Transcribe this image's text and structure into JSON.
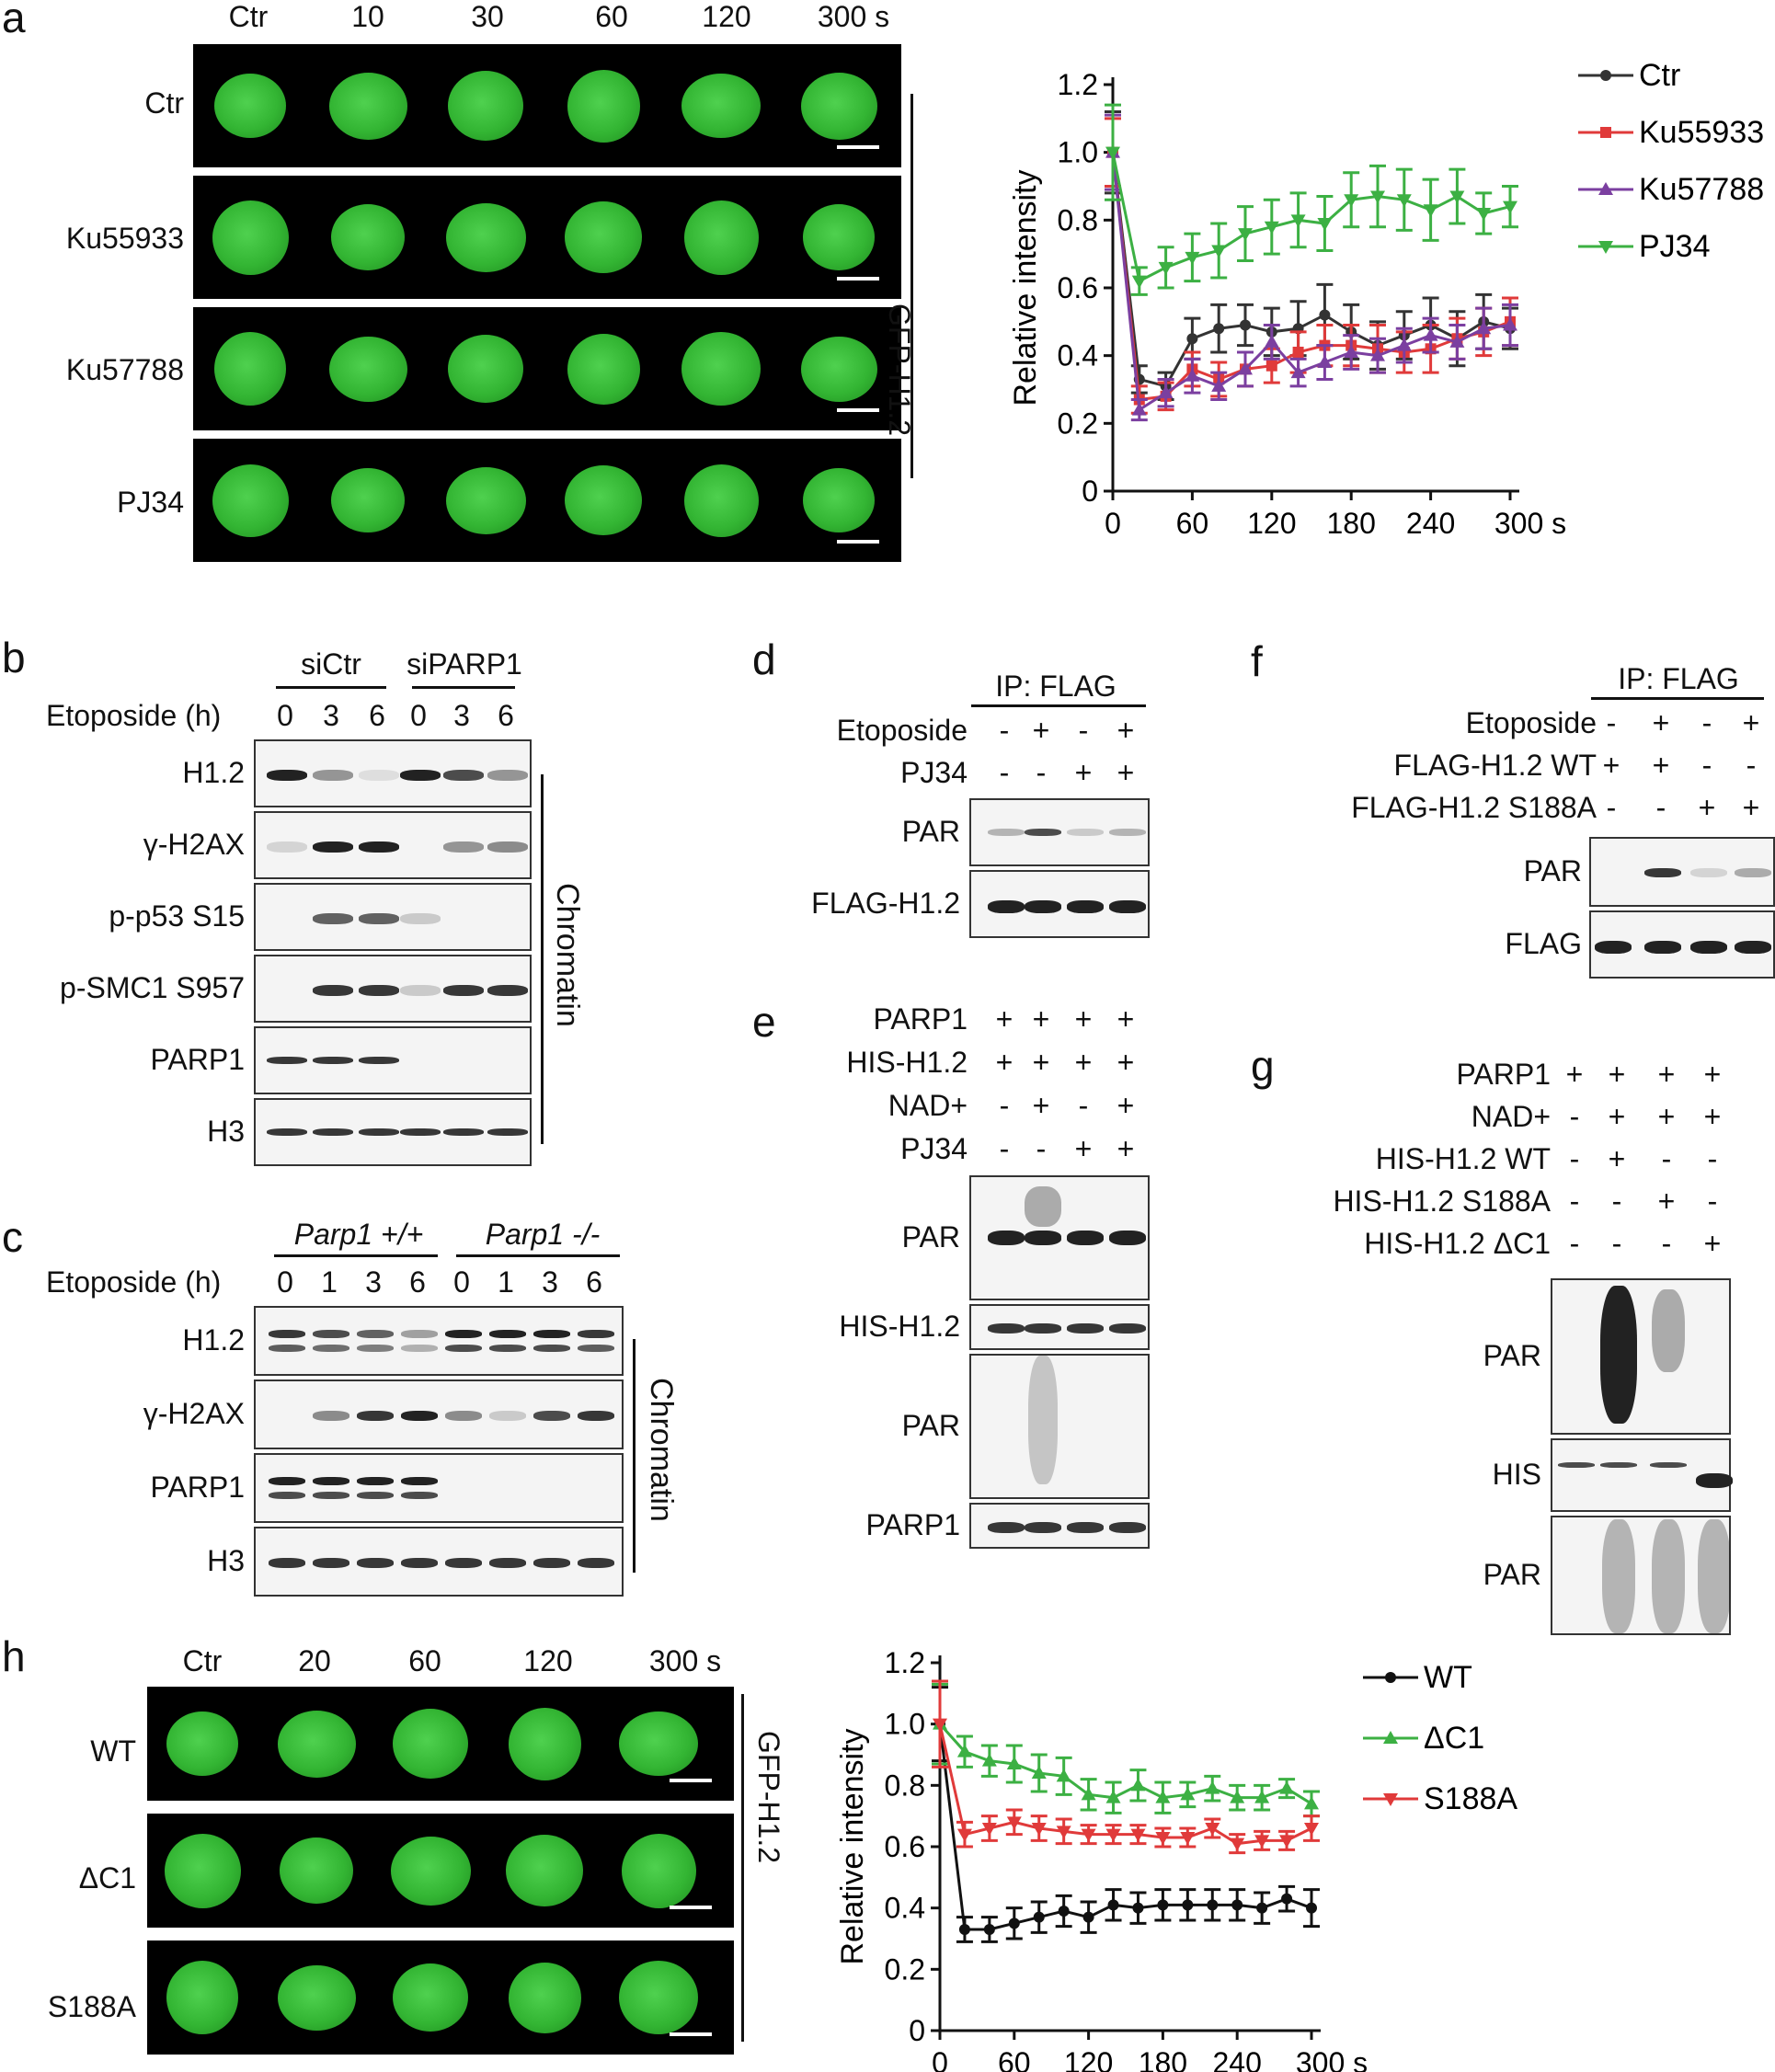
{
  "panels": {
    "a": {
      "label": "a",
      "time_headers": [
        "Ctr",
        "10",
        "30",
        "60",
        "120",
        "300 s"
      ],
      "row_labels": [
        "Ctr",
        "Ku55933",
        "Ku57788",
        "PJ34"
      ],
      "side_label": "GFP-H1.2"
    },
    "b": {
      "label": "b",
      "group_labels": [
        "siCtr",
        "siPARP1"
      ],
      "etoposide_label": "Etoposide (h)",
      "times": [
        "0",
        "3",
        "6",
        "0",
        "3",
        "6"
      ],
      "row_labels": [
        "H1.2",
        "γ-H2AX",
        "p-p53 S15",
        "p-SMC1 S957",
        "PARP1",
        "H3"
      ],
      "side_label": "Chromatin"
    },
    "c": {
      "label": "c",
      "group_labels": [
        "Parp1 +/+",
        "Parp1 -/-"
      ],
      "etoposide_label": "Etoposide (h)",
      "times": [
        "0",
        "1",
        "3",
        "6",
        "0",
        "1",
        "3",
        "6"
      ],
      "row_labels": [
        "H1.2",
        "γ-H2AX",
        "PARP1",
        "H3"
      ],
      "side_label": "Chromatin"
    },
    "d": {
      "label": "d",
      "ip_label": "IP: FLAG",
      "conditions": [
        {
          "name": "Etoposide",
          "marks": [
            "-",
            "+",
            "-",
            "+"
          ]
        },
        {
          "name": "PJ34",
          "marks": [
            "-",
            "-",
            "+",
            "+"
          ]
        }
      ],
      "row_labels": [
        "PAR",
        "FLAG-H1.2"
      ]
    },
    "e": {
      "label": "e",
      "conditions": [
        {
          "name": "PARP1",
          "marks": [
            "+",
            "+",
            "+",
            "+"
          ]
        },
        {
          "name": "HIS-H1.2",
          "marks": [
            "+",
            "+",
            "+",
            "+"
          ]
        },
        {
          "name": "NAD+",
          "marks": [
            "-",
            "+",
            "-",
            "+"
          ]
        },
        {
          "name": "PJ34",
          "marks": [
            "-",
            "-",
            "+",
            "+"
          ]
        }
      ],
      "row_labels": [
        "PAR",
        "HIS-H1.2",
        "PAR",
        "PARP1"
      ]
    },
    "f": {
      "label": "f",
      "ip_label": "IP: FLAG",
      "conditions": [
        {
          "name": "Etoposide",
          "marks": [
            "-",
            "+",
            "-",
            "+"
          ]
        },
        {
          "name": "FLAG-H1.2 WT",
          "marks": [
            "+",
            "+",
            "-",
            "-"
          ]
        },
        {
          "name": "FLAG-H1.2 S188A",
          "marks": [
            "-",
            "-",
            "+",
            "+"
          ]
        }
      ],
      "row_labels": [
        "PAR",
        "FLAG"
      ]
    },
    "g": {
      "label": "g",
      "conditions": [
        {
          "name": "PARP1",
          "marks": [
            "+",
            "+",
            "+",
            "+"
          ]
        },
        {
          "name": "NAD+",
          "marks": [
            "-",
            "+",
            "+",
            "+"
          ]
        },
        {
          "name": "HIS-H1.2 WT",
          "marks": [
            "-",
            "+",
            "-",
            "-"
          ]
        },
        {
          "name": "HIS-H1.2 S188A",
          "marks": [
            "-",
            "-",
            "+",
            "-"
          ]
        },
        {
          "name": "HIS-H1.2 ΔC1",
          "marks": [
            "-",
            "-",
            "-",
            "+"
          ]
        }
      ],
      "row_labels": [
        "PAR",
        "HIS",
        "PAR"
      ]
    },
    "h": {
      "label": "h",
      "time_headers": [
        "Ctr",
        "20",
        "60",
        "120",
        "300 s"
      ],
      "row_labels": [
        "WT",
        "ΔC1",
        "S188A"
      ],
      "side_label": "GFP-H1.2"
    }
  },
  "chart_data": [
    {
      "type": "line",
      "panel": "a",
      "ylabel": "Relative intensity",
      "x_tick_labels": [
        "0",
        "60",
        "120",
        "180",
        "240",
        "300 s"
      ],
      "x_ticks": [
        0,
        60,
        120,
        180,
        240,
        300
      ],
      "y_tick_labels": [
        "0",
        "0.2",
        "0.4",
        "0.6",
        "0.8",
        "1.0",
        "1.2"
      ],
      "y_ticks": [
        0,
        0.2,
        0.4,
        0.6,
        0.8,
        1.0,
        1.2
      ],
      "xlim": [
        0,
        300
      ],
      "ylim": [
        0,
        1.2
      ],
      "x": [
        0,
        20,
        40,
        60,
        80,
        100,
        120,
        140,
        160,
        180,
        200,
        220,
        240,
        260,
        280,
        300
      ],
      "legend_position": "top-right",
      "series": [
        {
          "name": "Ctr",
          "color": "#333333",
          "marker": "circle",
          "values": [
            1.0,
            0.33,
            0.31,
            0.45,
            0.48,
            0.49,
            0.47,
            0.48,
            0.52,
            0.47,
            0.43,
            0.46,
            0.49,
            0.45,
            0.5,
            0.48
          ],
          "err": [
            0.12,
            0.04,
            0.04,
            0.06,
            0.07,
            0.06,
            0.07,
            0.08,
            0.09,
            0.08,
            0.07,
            0.07,
            0.08,
            0.08,
            0.08,
            0.06
          ]
        },
        {
          "name": "Ku55933",
          "color": "#e03a3a",
          "marker": "square",
          "values": [
            1.0,
            0.27,
            0.28,
            0.36,
            0.33,
            0.36,
            0.37,
            0.41,
            0.43,
            0.43,
            0.42,
            0.41,
            0.42,
            0.45,
            0.47,
            0.5
          ],
          "err": [
            0.1,
            0.04,
            0.04,
            0.05,
            0.05,
            0.05,
            0.05,
            0.06,
            0.06,
            0.06,
            0.07,
            0.06,
            0.07,
            0.06,
            0.07,
            0.07
          ]
        },
        {
          "name": "Ku57788",
          "color": "#7b3fa0",
          "marker": "triangle-up",
          "values": [
            1.0,
            0.24,
            0.29,
            0.34,
            0.31,
            0.36,
            0.44,
            0.35,
            0.38,
            0.41,
            0.4,
            0.43,
            0.46,
            0.44,
            0.48,
            0.49
          ],
          "err": [
            0.11,
            0.03,
            0.04,
            0.05,
            0.04,
            0.05,
            0.05,
            0.04,
            0.05,
            0.05,
            0.05,
            0.05,
            0.05,
            0.05,
            0.06,
            0.06
          ]
        },
        {
          "name": "PJ34",
          "color": "#3cb043",
          "marker": "triangle-down",
          "values": [
            1.0,
            0.62,
            0.66,
            0.69,
            0.71,
            0.76,
            0.78,
            0.8,
            0.79,
            0.86,
            0.87,
            0.86,
            0.83,
            0.87,
            0.82,
            0.84
          ],
          "err": [
            0.14,
            0.04,
            0.06,
            0.07,
            0.08,
            0.08,
            0.08,
            0.08,
            0.08,
            0.08,
            0.09,
            0.09,
            0.09,
            0.08,
            0.06,
            0.06
          ]
        }
      ]
    },
    {
      "type": "line",
      "panel": "h",
      "ylabel": "Relative intensity",
      "x_tick_labels": [
        "0",
        "60",
        "120",
        "180",
        "240",
        "300 s"
      ],
      "x_ticks": [
        0,
        60,
        120,
        180,
        240,
        300
      ],
      "y_tick_labels": [
        "0",
        "0.2",
        "0.4",
        "0.6",
        "0.8",
        "1.0",
        "1.2"
      ],
      "y_ticks": [
        0,
        0.2,
        0.4,
        0.6,
        0.8,
        1.0,
        1.2
      ],
      "xlim": [
        0,
        300
      ],
      "ylim": [
        0,
        1.2
      ],
      "x": [
        0,
        20,
        40,
        60,
        80,
        100,
        120,
        140,
        160,
        180,
        200,
        220,
        240,
        260,
        280,
        300
      ],
      "legend_position": "top-right",
      "series": [
        {
          "name": "WT",
          "color": "#111111",
          "marker": "circle",
          "values": [
            1.0,
            0.33,
            0.33,
            0.35,
            0.37,
            0.39,
            0.37,
            0.41,
            0.4,
            0.41,
            0.41,
            0.41,
            0.41,
            0.4,
            0.43,
            0.4
          ],
          "err": [
            0.12,
            0.04,
            0.04,
            0.05,
            0.05,
            0.05,
            0.05,
            0.05,
            0.05,
            0.05,
            0.05,
            0.05,
            0.05,
            0.05,
            0.04,
            0.06
          ]
        },
        {
          "name": "ΔC1",
          "color": "#3cb043",
          "marker": "triangle-up",
          "values": [
            1.0,
            0.91,
            0.88,
            0.87,
            0.84,
            0.83,
            0.77,
            0.76,
            0.8,
            0.76,
            0.77,
            0.79,
            0.76,
            0.76,
            0.79,
            0.74
          ],
          "err": [
            0.13,
            0.05,
            0.05,
            0.06,
            0.06,
            0.06,
            0.05,
            0.05,
            0.05,
            0.05,
            0.04,
            0.04,
            0.04,
            0.04,
            0.03,
            0.04
          ]
        },
        {
          "name": "S188A",
          "color": "#e03a3a",
          "marker": "triangle-down",
          "values": [
            1.0,
            0.64,
            0.66,
            0.68,
            0.66,
            0.65,
            0.64,
            0.64,
            0.64,
            0.63,
            0.63,
            0.66,
            0.61,
            0.62,
            0.62,
            0.66
          ],
          "err": [
            0.14,
            0.04,
            0.04,
            0.04,
            0.04,
            0.04,
            0.03,
            0.03,
            0.03,
            0.03,
            0.03,
            0.03,
            0.03,
            0.03,
            0.03,
            0.04
          ]
        }
      ]
    }
  ]
}
